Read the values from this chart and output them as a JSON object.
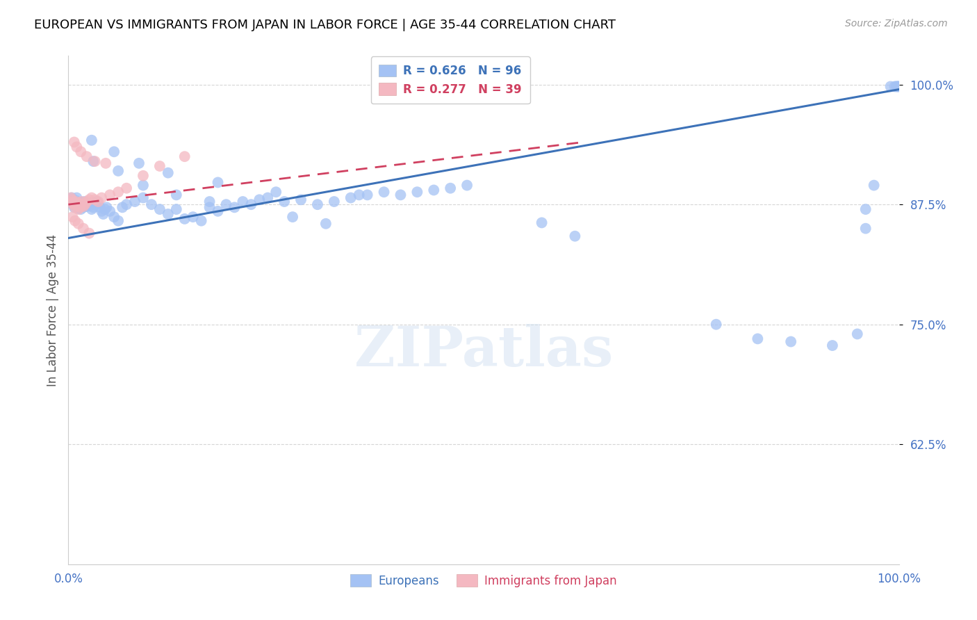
{
  "title": "EUROPEAN VS IMMIGRANTS FROM JAPAN IN LABOR FORCE | AGE 35-44 CORRELATION CHART",
  "source": "Source: ZipAtlas.com",
  "ylabel": "In Labor Force | Age 35-44",
  "x_min": 0.0,
  "x_max": 1.0,
  "y_min": 0.5,
  "y_max": 1.03,
  "x_tick_labels": [
    "0.0%",
    "100.0%"
  ],
  "y_tick_labels": [
    "62.5%",
    "75.0%",
    "87.5%",
    "100.0%"
  ],
  "y_tick_values": [
    0.625,
    0.75,
    0.875,
    1.0
  ],
  "grid_color": "#cccccc",
  "background_color": "#ffffff",
  "blue_color": "#a4c2f4",
  "pink_color": "#f4b8c1",
  "blue_line_color": "#3d72b8",
  "pink_line_color": "#d04060",
  "R_blue": 0.626,
  "N_blue": 96,
  "R_pink": 0.277,
  "N_pink": 39,
  "legend_blue": "Europeans",
  "legend_pink": "Immigrants from Japan",
  "watermark": "ZIPatlas",
  "title_color": "#000000",
  "source_color": "#999999",
  "axis_label_color": "#555555",
  "tick_color": "#4472c4",
  "blue_line_y_start": 0.84,
  "blue_line_y_end": 0.995,
  "pink_line_x_start": 0.0,
  "pink_line_x_end": 0.62,
  "pink_line_y_start": 0.875,
  "pink_line_y_end": 0.94,
  "blue_scatter_x": [
    0.003,
    0.004,
    0.005,
    0.006,
    0.007,
    0.008,
    0.009,
    0.01,
    0.011,
    0.012,
    0.013,
    0.014,
    0.015,
    0.016,
    0.017,
    0.018,
    0.019,
    0.02,
    0.022,
    0.024,
    0.026,
    0.028,
    0.03,
    0.032,
    0.034,
    0.036,
    0.038,
    0.04,
    0.042,
    0.044,
    0.046,
    0.05,
    0.055,
    0.06,
    0.065,
    0.07,
    0.08,
    0.09,
    0.1,
    0.11,
    0.12,
    0.13,
    0.14,
    0.15,
    0.16,
    0.17,
    0.18,
    0.19,
    0.2,
    0.21,
    0.22,
    0.23,
    0.24,
    0.26,
    0.28,
    0.3,
    0.32,
    0.34,
    0.36,
    0.38,
    0.4,
    0.42,
    0.44,
    0.46,
    0.48,
    0.03,
    0.06,
    0.09,
    0.13,
    0.17,
    0.028,
    0.055,
    0.085,
    0.12,
    0.18,
    0.25,
    0.35,
    0.27,
    0.31,
    0.57,
    0.61,
    0.78,
    0.83,
    0.87,
    0.92,
    0.95,
    0.96,
    0.96,
    0.97,
    0.99,
    0.995,
    0.997,
    0.998,
    0.999,
    1.0
  ],
  "blue_scatter_y": [
    0.88,
    0.882,
    0.878,
    0.875,
    0.872,
    0.876,
    0.879,
    0.882,
    0.875,
    0.871,
    0.876,
    0.873,
    0.87,
    0.877,
    0.874,
    0.872,
    0.878,
    0.875,
    0.873,
    0.876,
    0.874,
    0.87,
    0.872,
    0.875,
    0.878,
    0.876,
    0.872,
    0.868,
    0.865,
    0.87,
    0.872,
    0.868,
    0.862,
    0.858,
    0.872,
    0.875,
    0.878,
    0.882,
    0.875,
    0.87,
    0.865,
    0.87,
    0.86,
    0.862,
    0.858,
    0.872,
    0.868,
    0.875,
    0.872,
    0.878,
    0.875,
    0.88,
    0.882,
    0.878,
    0.88,
    0.875,
    0.878,
    0.882,
    0.885,
    0.888,
    0.885,
    0.888,
    0.89,
    0.892,
    0.895,
    0.92,
    0.91,
    0.895,
    0.885,
    0.878,
    0.942,
    0.93,
    0.918,
    0.908,
    0.898,
    0.888,
    0.885,
    0.862,
    0.855,
    0.856,
    0.842,
    0.75,
    0.735,
    0.732,
    0.728,
    0.74,
    0.85,
    0.87,
    0.895,
    0.998,
    0.998,
    0.998,
    0.998,
    0.998,
    0.998
  ],
  "pink_scatter_x": [
    0.003,
    0.004,
    0.005,
    0.006,
    0.007,
    0.008,
    0.009,
    0.01,
    0.011,
    0.012,
    0.013,
    0.014,
    0.015,
    0.016,
    0.018,
    0.02,
    0.022,
    0.025,
    0.028,
    0.032,
    0.036,
    0.04,
    0.05,
    0.06,
    0.07,
    0.09,
    0.11,
    0.14,
    0.005,
    0.008,
    0.012,
    0.018,
    0.025,
    0.007,
    0.01,
    0.015,
    0.022,
    0.032,
    0.045
  ],
  "pink_scatter_y": [
    0.882,
    0.88,
    0.876,
    0.878,
    0.875,
    0.872,
    0.878,
    0.876,
    0.874,
    0.87,
    0.876,
    0.872,
    0.875,
    0.878,
    0.873,
    0.875,
    0.878,
    0.88,
    0.882,
    0.88,
    0.878,
    0.882,
    0.885,
    0.888,
    0.892,
    0.905,
    0.915,
    0.925,
    0.862,
    0.858,
    0.855,
    0.85,
    0.845,
    0.94,
    0.935,
    0.93,
    0.925,
    0.92,
    0.918
  ]
}
